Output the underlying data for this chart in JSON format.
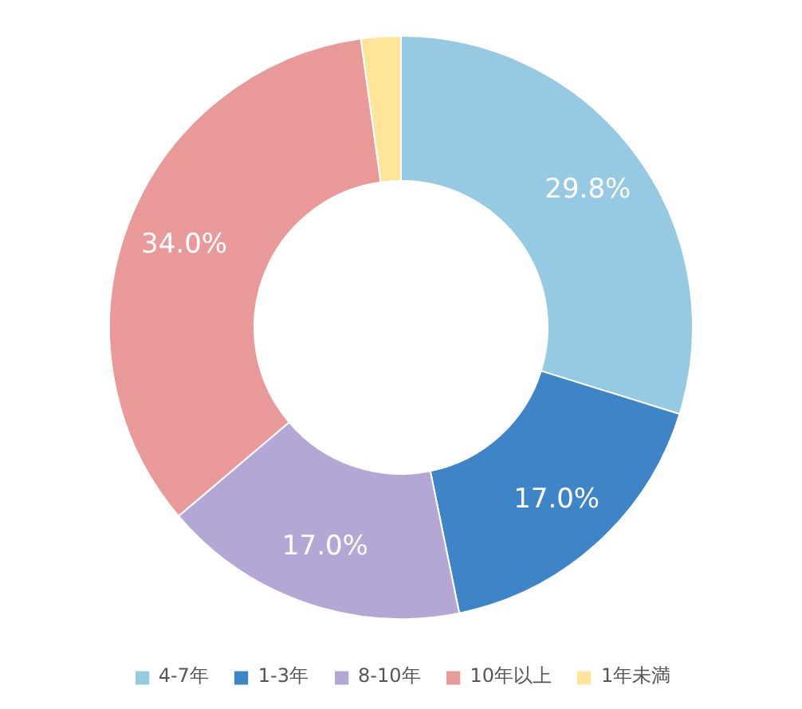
{
  "chart_data": {
    "type": "donut",
    "categories": [
      "4-7年",
      "1-3年",
      "8-10年",
      "10年以上",
      "1年未満"
    ],
    "values": [
      29.8,
      17.0,
      17.0,
      34.0,
      2.2
    ],
    "colors": [
      "#96cae2",
      "#3d85c6",
      "#b4a7d6",
      "#ea9999",
      "#ffe599"
    ],
    "value_labels": [
      "29.8%",
      "17.0%",
      "17.0%",
      "34.0%",
      null
    ],
    "legend": "bottom"
  }
}
